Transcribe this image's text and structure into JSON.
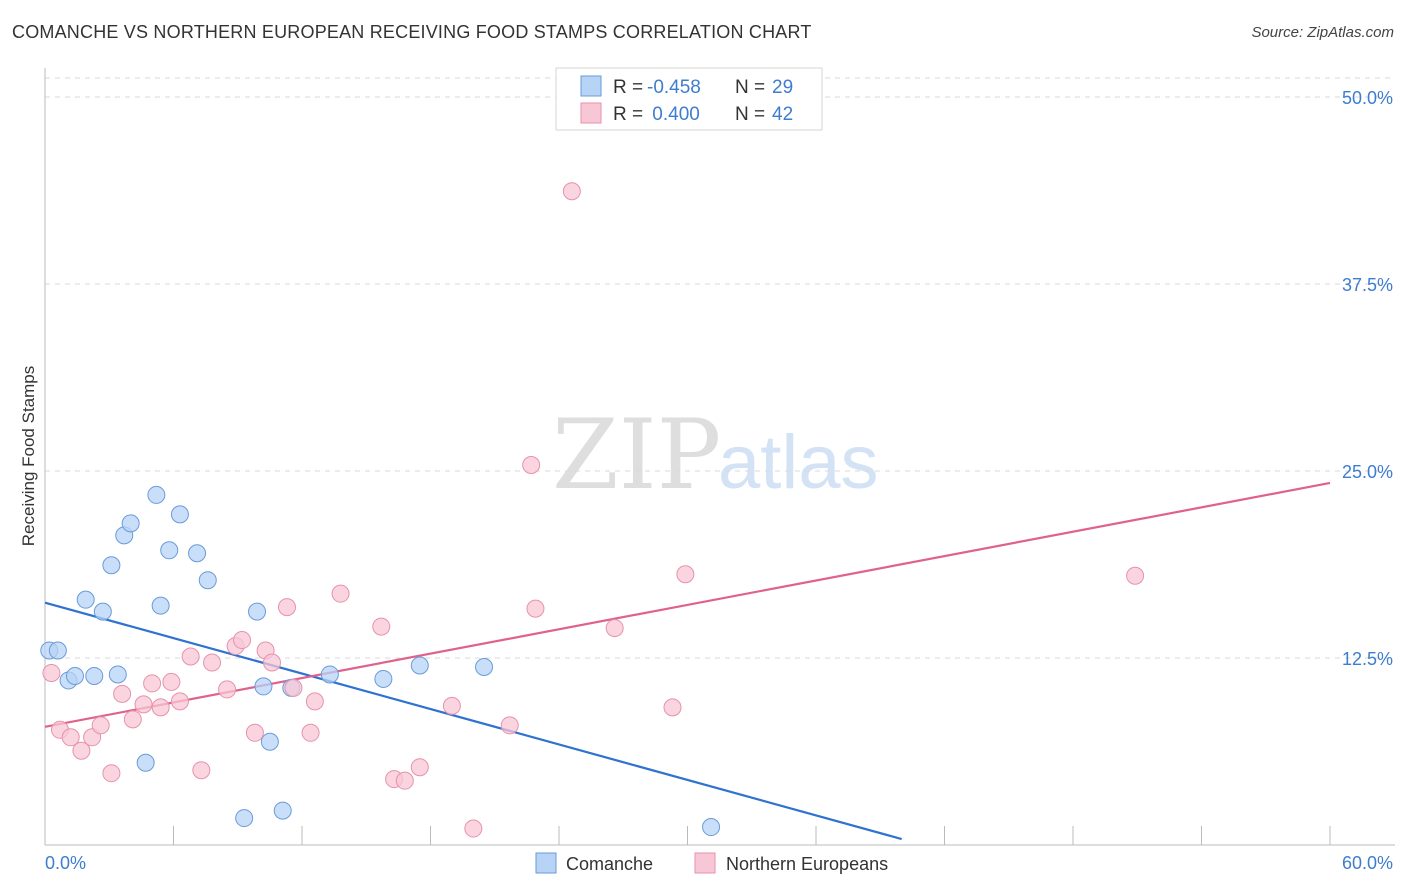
{
  "title": "COMANCHE VS NORTHERN EUROPEAN RECEIVING FOOD STAMPS CORRELATION CHART",
  "source": "Source: ZipAtlas.com",
  "watermark": {
    "zip": "ZIP",
    "atlas": "atlas"
  },
  "colors": {
    "comanche_fill": "#b7d3f5",
    "comanche_stroke": "#6a9bd8",
    "comanche_line": "#2f72d0",
    "northern_fill": "#f8c7d6",
    "northern_stroke": "#e792ad",
    "northern_line": "#e0628c",
    "tick_text": "#3d7dd0",
    "grid": "#d9d9d9"
  },
  "legend": {
    "rows": [
      {
        "r_label": "R =",
        "r_value": "-0.458",
        "n_label": "N =",
        "n_value": "29"
      },
      {
        "r_label": "R =",
        "r_value": " 0.400",
        "n_label": "N =",
        "n_value": "42"
      }
    ]
  },
  "chart_data": {
    "type": "scatter",
    "title": "COMANCHE VS NORTHERN EUROPEAN RECEIVING FOOD STAMPS CORRELATION CHART",
    "xlabel": "",
    "ylabel": "Receiving Food Stamps",
    "xlim": [
      0,
      60
    ],
    "ylim": [
      0,
      50
    ],
    "x_tick_labels": [
      "0.0%",
      "60.0%"
    ],
    "y_ticks": [
      12.5,
      25.0,
      37.5,
      50.0
    ],
    "y_tick_labels": [
      "12.5%",
      "25.0%",
      "37.5%",
      "50.0%"
    ],
    "grid": true,
    "legend_position": "top-center",
    "series": [
      {
        "name": "Comanche",
        "r": -0.458,
        "n": 29,
        "trend": {
          "x": [
            0,
            40
          ],
          "y": [
            16.2,
            0.4
          ]
        },
        "points": [
          [
            0.2,
            13.0
          ],
          [
            0.6,
            13.0
          ],
          [
            1.1,
            11.0
          ],
          [
            1.4,
            11.3
          ],
          [
            1.9,
            16.4
          ],
          [
            2.3,
            11.3
          ],
          [
            2.7,
            15.6
          ],
          [
            3.1,
            18.7
          ],
          [
            3.4,
            11.4
          ],
          [
            3.7,
            20.7
          ],
          [
            4.0,
            21.5
          ],
          [
            4.7,
            5.5
          ],
          [
            5.2,
            23.4
          ],
          [
            5.4,
            16.0
          ],
          [
            5.8,
            19.7
          ],
          [
            6.3,
            22.1
          ],
          [
            7.1,
            19.5
          ],
          [
            7.6,
            17.7
          ],
          [
            9.3,
            1.8
          ],
          [
            9.9,
            15.6
          ],
          [
            10.2,
            10.6
          ],
          [
            10.5,
            6.9
          ],
          [
            11.1,
            2.3
          ],
          [
            11.5,
            10.5
          ],
          [
            13.3,
            11.4
          ],
          [
            15.8,
            11.1
          ],
          [
            17.5,
            12.0
          ],
          [
            20.5,
            11.9
          ],
          [
            31.1,
            1.2
          ]
        ]
      },
      {
        "name": "Northern Europeans",
        "r": 0.4,
        "n": 42,
        "trend": {
          "x": [
            0,
            60
          ],
          "y": [
            7.9,
            24.2
          ]
        },
        "points": [
          [
            0.3,
            11.5
          ],
          [
            0.7,
            7.7
          ],
          [
            1.2,
            7.2
          ],
          [
            1.7,
            6.3
          ],
          [
            2.2,
            7.2
          ],
          [
            2.6,
            8.0
          ],
          [
            3.1,
            4.8
          ],
          [
            3.6,
            10.1
          ],
          [
            4.1,
            8.4
          ],
          [
            4.6,
            9.4
          ],
          [
            5.0,
            10.8
          ],
          [
            5.4,
            9.2
          ],
          [
            5.9,
            10.9
          ],
          [
            6.3,
            9.6
          ],
          [
            6.8,
            12.6
          ],
          [
            7.3,
            5.0
          ],
          [
            7.8,
            12.2
          ],
          [
            8.5,
            10.4
          ],
          [
            8.9,
            13.3
          ],
          [
            9.2,
            13.7
          ],
          [
            9.8,
            7.5
          ],
          [
            10.3,
            13.0
          ],
          [
            10.6,
            12.2
          ],
          [
            11.3,
            15.9
          ],
          [
            11.6,
            10.5
          ],
          [
            12.4,
            7.5
          ],
          [
            12.6,
            9.6
          ],
          [
            13.8,
            16.8
          ],
          [
            15.7,
            14.6
          ],
          [
            16.3,
            4.4
          ],
          [
            16.8,
            4.3
          ],
          [
            17.5,
            5.2
          ],
          [
            19.0,
            9.3
          ],
          [
            20.0,
            1.1
          ],
          [
            21.7,
            8.0
          ],
          [
            22.7,
            25.4
          ],
          [
            22.9,
            15.8
          ],
          [
            24.6,
            43.7
          ],
          [
            26.6,
            14.5
          ],
          [
            29.3,
            9.2
          ],
          [
            29.9,
            18.1
          ],
          [
            50.9,
            18.0
          ]
        ]
      }
    ]
  },
  "series_legend": [
    {
      "label": "Comanche"
    },
    {
      "label": "Northern Europeans"
    }
  ]
}
